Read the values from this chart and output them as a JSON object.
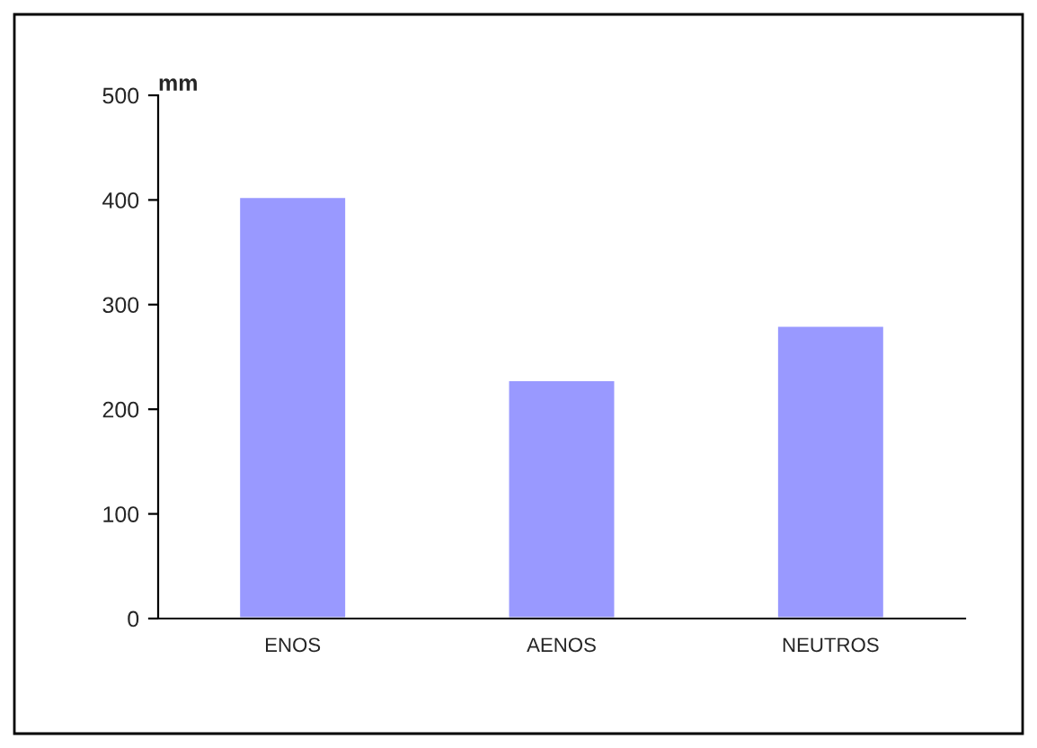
{
  "chart_data": {
    "type": "bar",
    "ylabel": "mm",
    "categories": [
      "ENOS",
      "AENOS",
      "NEUTROS"
    ],
    "values": [
      403,
      228,
      280
    ],
    "color": "#9999ff",
    "ylim": [
      0,
      500
    ],
    "yticks": [
      0,
      100,
      200,
      300,
      400,
      500
    ],
    "grid": false,
    "legend": false
  }
}
